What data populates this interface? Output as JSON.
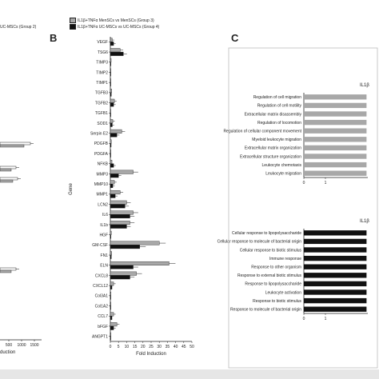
{
  "panels": {
    "b_letter": "B",
    "c_letter": "C"
  },
  "panel_a": {
    "legend_fragment": "UC-MSCs (Group 2)",
    "x_ticks": [
      "500",
      "1000",
      "1500"
    ],
    "x_label_fragment": "duction"
  },
  "colors": {
    "white_bar": "#ffffff",
    "grey_bar": "#a8a8a8",
    "black_bar": "#111111",
    "axis": "#222222",
    "footer": "#e6e6e6"
  },
  "chart_data": [
    {
      "type": "bar",
      "orientation": "horizontal",
      "ylabel": "Gene",
      "xlabel": "Fold Induction",
      "xlim": [
        0,
        50
      ],
      "x_ticks": [
        "0",
        "5",
        "10",
        "15",
        "20",
        "25",
        "30",
        "35",
        "40",
        "45",
        "50"
      ],
      "legend": [
        {
          "label": "IL1β+TNFα MenSCs vs MenSCs (Group 3)",
          "color": "#a8a8a8"
        },
        {
          "label": "IL1β+TNFα UC-MSCs vs UC-MSCs (Group 4)",
          "color": "#111111"
        }
      ],
      "categories": [
        "VEGF",
        "TSG6",
        "TIMP3",
        "TIMP2",
        "TIMP1",
        "TGFB3",
        "TGFB2",
        "TGFB1",
        "SOD1",
        "Serpin E2",
        "PDGFB",
        "PDGFA",
        "NFKB",
        "MMP3",
        "MMP10",
        "MMP1",
        "LCN2",
        "IL6",
        "IL1b",
        "HGF",
        "GM-CSF",
        "FN1",
        "ELN",
        "CXCL8",
        "CXCL12",
        "Col3A1",
        "Col1A2",
        "CCL7",
        "bFGF",
        "ANGPT1"
      ],
      "series": [
        {
          "name": "IL1β+TNFα MenSCs vs MenSCs (Group 3)",
          "values": [
            1.2,
            6,
            0.5,
            0.4,
            0.4,
            0.8,
            2.5,
            0.3,
            1.5,
            7,
            0.6,
            0.4,
            1,
            14,
            2.5,
            6,
            10,
            14,
            12,
            0.6,
            30,
            0.8,
            36,
            16,
            2,
            0.4,
            0.4,
            2,
            4,
            0.4
          ]
        },
        {
          "name": "IL1β+TNFα UC-MSCs vs UC-MSCs (Group 4)",
          "values": [
            2,
            8,
            0.4,
            0.3,
            0.3,
            0.6,
            2,
            0.3,
            1.2,
            4,
            0.5,
            0.3,
            2,
            5,
            1.5,
            3,
            9,
            12,
            10,
            0.4,
            18,
            0.6,
            14,
            12,
            1,
            0.3,
            0.3,
            1,
            2,
            0.3
          ]
        }
      ]
    },
    {
      "type": "bar",
      "orientation": "horizontal",
      "title_fragment": "IL1β",
      "x_ticks": [
        "0",
        "1"
      ],
      "categories": [
        "Regulation of cell migration",
        "Regulation of cell motility",
        "Extracellular matrix disassembly",
        "Regulation of locomotion",
        "Regulation of cellular component movement",
        "Myeloid leukocyte migration",
        "Extracellular matrix organization",
        "Extracellular structure organization",
        "Leukocyte chemotaxis",
        "Leukocyte migration"
      ],
      "values": [
        12,
        12,
        12,
        12,
        12,
        12,
        12,
        12,
        12,
        12
      ],
      "color": "#a8a8a8"
    },
    {
      "type": "bar",
      "orientation": "horizontal",
      "title_fragment": "IL1β",
      "x_ticks": [
        "0",
        "1"
      ],
      "categories": [
        "Cellular response to lipopolysaccharide",
        "Cellular response to molecule of bacterial origin",
        "Cellular response to biotic stimulus",
        "Immune response",
        "Response to other organism",
        "Response to external biotic stimulus",
        "Response to lipopolysaccharide",
        "Leukocyte activation",
        "Response to biotic stimulus",
        "Response to molecule of bacterial origin"
      ],
      "values": [
        12,
        12,
        12,
        12,
        12,
        12,
        12,
        12,
        12,
        12
      ],
      "color": "#111111"
    }
  ]
}
